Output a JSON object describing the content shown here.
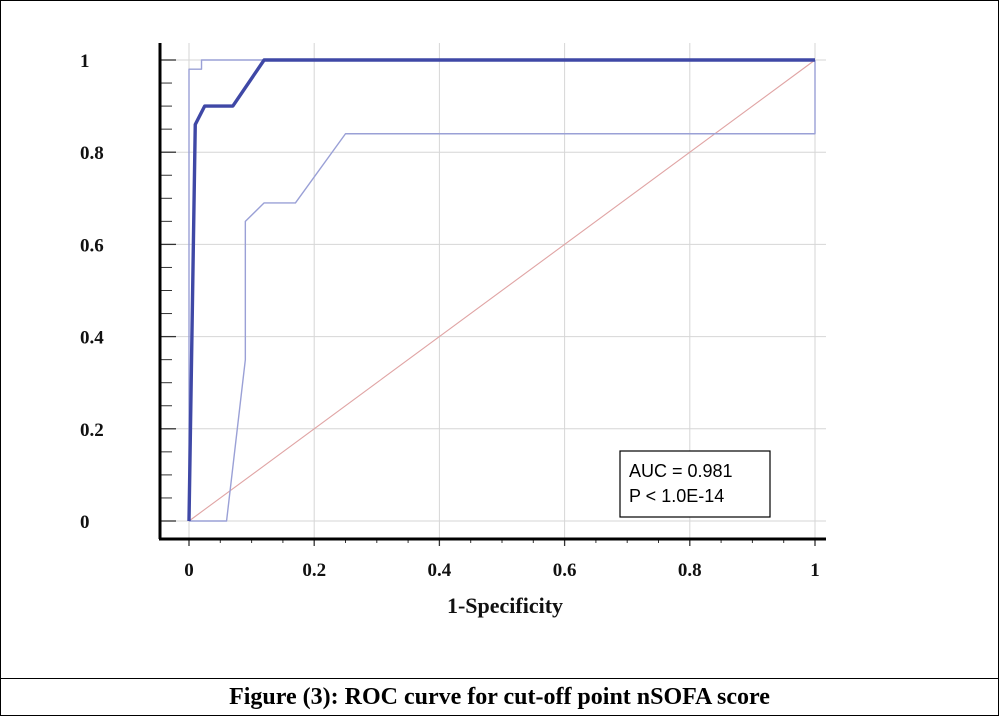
{
  "caption": "Figure (3): ROC curve for cut-off point nSOFA score",
  "chart_data": {
    "type": "line",
    "xlabel": "1-Specificity",
    "ylabel": "",
    "xlim": [
      0,
      1
    ],
    "ylim": [
      0,
      1
    ],
    "x_ticks": [
      "0",
      "0.2",
      "0.4",
      "0.6",
      "0.8",
      "1"
    ],
    "y_ticks": [
      "0",
      "0.2",
      "0.4",
      "0.6",
      "0.8",
      "1"
    ],
    "grid": true,
    "series": [
      {
        "role": "roc",
        "color": "#3f48a6",
        "x": [
          0,
          0.01,
          0.01,
          0.025,
          0.07,
          0.12,
          1
        ],
        "y": [
          0,
          0.86,
          0.86,
          0.9,
          0.9,
          1,
          1
        ]
      },
      {
        "role": "ci-upper",
        "color": "#9aa0d6",
        "x": [
          0,
          0,
          0.02,
          0.02,
          1
        ],
        "y": [
          0,
          0.98,
          0.98,
          1,
          1
        ]
      },
      {
        "role": "ci-lower",
        "color": "#9aa0d6",
        "x": [
          0,
          0.06,
          0.09,
          0.09,
          0.12,
          0.17,
          0.25,
          1,
          1
        ],
        "y": [
          0,
          0,
          0.35,
          0.65,
          0.69,
          0.69,
          0.84,
          0.84,
          1
        ]
      },
      {
        "role": "reference",
        "color": "#e0a4a4",
        "x": [
          0,
          1
        ],
        "y": [
          0,
          1
        ]
      }
    ],
    "annotations": [
      "AUC = 0.981",
      "P < 1.0E-14"
    ]
  }
}
